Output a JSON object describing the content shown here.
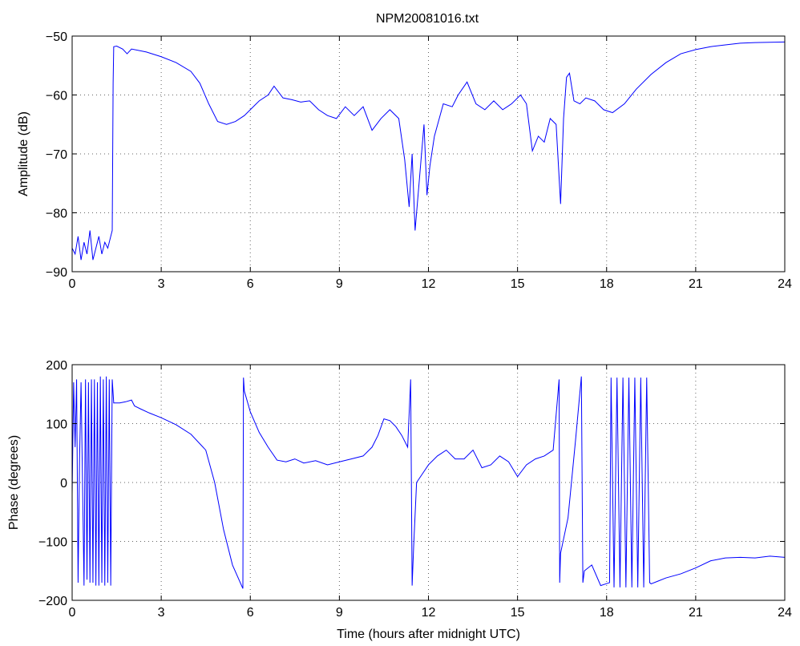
{
  "figure": {
    "title": "NPM20081016.txt"
  },
  "chart_data": [
    {
      "type": "line",
      "ylabel": "Amplitude (dB)",
      "xlabel": "",
      "xlim": [
        0,
        24
      ],
      "ylim": [
        -90,
        -50
      ],
      "xticks": [
        0,
        3,
        6,
        9,
        12,
        15,
        18,
        21,
        24
      ],
      "yticks": [
        -90,
        -80,
        -70,
        -60,
        -50
      ],
      "grid": true,
      "series": [
        {
          "color": "#0000ff",
          "x": [
            0,
            0.1,
            0.2,
            0.3,
            0.4,
            0.5,
            0.6,
            0.7,
            0.8,
            0.9,
            1.0,
            1.1,
            1.2,
            1.3,
            1.35,
            1.38,
            1.4,
            1.5,
            1.7,
            1.85,
            2.0,
            2.5,
            3.0,
            3.5,
            4.0,
            4.3,
            4.6,
            4.9,
            5.2,
            5.5,
            5.8,
            6.0,
            6.3,
            6.6,
            6.8,
            7.1,
            7.4,
            7.7,
            8.0,
            8.3,
            8.6,
            8.9,
            9.2,
            9.5,
            9.8,
            10.1,
            10.4,
            10.7,
            11.0,
            11.2,
            11.35,
            11.45,
            11.55,
            11.7,
            11.85,
            11.95,
            12.05,
            12.2,
            12.5,
            12.8,
            13.0,
            13.3,
            13.6,
            13.9,
            14.2,
            14.5,
            14.8,
            15.1,
            15.3,
            15.5,
            15.7,
            15.9,
            16.1,
            16.3,
            16.45,
            16.55,
            16.65,
            16.75,
            16.9,
            17.1,
            17.3,
            17.6,
            17.9,
            18.2,
            18.6,
            19.0,
            19.5,
            20.0,
            20.5,
            21.0,
            21.5,
            22.0,
            22.5,
            23.0,
            23.5,
            24.0
          ],
          "y": [
            -86,
            -87,
            -84,
            -88,
            -85,
            -87,
            -83,
            -88,
            -86,
            -84,
            -87,
            -85,
            -86,
            -84,
            -83,
            -58,
            -51.8,
            -51.7,
            -52.2,
            -53,
            -52.2,
            -52.7,
            -53.5,
            -54.5,
            -56,
            -58,
            -61.5,
            -64.5,
            -65,
            -64.5,
            -63.5,
            -62.5,
            -61,
            -60,
            -58.5,
            -60.5,
            -60.8,
            -61.2,
            -61,
            -62.5,
            -63.5,
            -64,
            -62,
            -63.5,
            -62,
            -66,
            -64,
            -62.5,
            -64,
            -71,
            -79,
            -70,
            -83,
            -74,
            -65,
            -77,
            -72,
            -67,
            -61.5,
            -62,
            -60,
            -57.8,
            -61.5,
            -62.5,
            -61,
            -62.5,
            -61.5,
            -60,
            -61.5,
            -69.5,
            -67,
            -68,
            -64,
            -65,
            -78.5,
            -64,
            -57,
            -56.3,
            -61,
            -61.5,
            -60.5,
            -61,
            -62.5,
            -63,
            -61.5,
            -59,
            -56.5,
            -54.5,
            -53,
            -52.3,
            -51.8,
            -51.5,
            -51.2,
            -51.1,
            -51.05,
            -51
          ]
        }
      ]
    },
    {
      "type": "line",
      "ylabel": "Phase (degrees)",
      "xlabel": "Time (hours after midnight UTC)",
      "xlim": [
        0,
        24
      ],
      "ylim": [
        -200,
        200
      ],
      "xticks": [
        0,
        3,
        6,
        9,
        12,
        15,
        18,
        21,
        24
      ],
      "yticks": [
        -200,
        -100,
        0,
        100,
        200
      ],
      "grid": true,
      "series": [
        {
          "color": "#0000ff",
          "x": [
            0,
            0.05,
            0.1,
            0.15,
            0.2,
            0.25,
            0.3,
            0.4,
            0.45,
            0.5,
            0.55,
            0.6,
            0.65,
            0.7,
            0.75,
            0.8,
            0.85,
            0.9,
            0.95,
            1.0,
            1.05,
            1.1,
            1.15,
            1.2,
            1.25,
            1.3,
            1.35,
            1.4,
            1.6,
            1.8,
            2.0,
            2.1,
            2.3,
            2.6,
            3.0,
            3.5,
            4.0,
            4.5,
            4.8,
            5.1,
            5.4,
            5.75,
            5.77,
            5.8,
            6.0,
            6.3,
            6.6,
            6.9,
            7.2,
            7.5,
            7.8,
            8.2,
            8.6,
            9.0,
            9.4,
            9.8,
            10.1,
            10.3,
            10.5,
            10.7,
            10.9,
            11.1,
            11.3,
            11.4,
            11.45,
            11.5,
            11.6,
            11.8,
            12.0,
            12.3,
            12.6,
            12.9,
            13.2,
            13.5,
            13.8,
            14.1,
            14.4,
            14.7,
            15.0,
            15.3,
            15.6,
            15.9,
            16.2,
            16.4,
            16.42,
            16.45,
            16.7,
            16.95,
            17.15,
            17.2,
            17.25,
            17.5,
            17.8,
            18.1,
            18.15,
            18.25,
            18.35,
            18.45,
            18.55,
            18.65,
            18.75,
            18.85,
            18.95,
            19.05,
            19.15,
            19.25,
            19.35,
            19.45,
            19.5,
            19.7,
            20.0,
            20.5,
            21.0,
            21.5,
            22.0,
            22.5,
            23.0,
            23.5,
            24.0
          ],
          "y": [
            -20,
            170,
            60,
            175,
            -170,
            40,
            170,
            -175,
            175,
            -165,
            170,
            -170,
            175,
            -170,
            175,
            -175,
            170,
            -175,
            180,
            -170,
            175,
            -175,
            180,
            -170,
            175,
            -175,
            175,
            135,
            135,
            137,
            140,
            130,
            125,
            118,
            110,
            98,
            82,
            55,
            0,
            -80,
            -140,
            -180,
            178,
            155,
            120,
            85,
            60,
            38,
            35,
            40,
            33,
            37,
            30,
            35,
            40,
            45,
            60,
            80,
            108,
            105,
            95,
            80,
            60,
            175,
            -175,
            -110,
            0,
            15,
            30,
            45,
            55,
            40,
            40,
            55,
            25,
            30,
            45,
            35,
            10,
            30,
            40,
            45,
            55,
            175,
            -170,
            -120,
            -60,
            70,
            180,
            -170,
            -150,
            -140,
            -175,
            -170,
            178,
            -178,
            178,
            -178,
            178,
            -178,
            178,
            -178,
            178,
            -178,
            178,
            -178,
            178,
            -170,
            -172,
            -168,
            -162,
            -155,
            -145,
            -133,
            -128,
            -127,
            -128,
            -125,
            -127
          ]
        }
      ]
    }
  ]
}
